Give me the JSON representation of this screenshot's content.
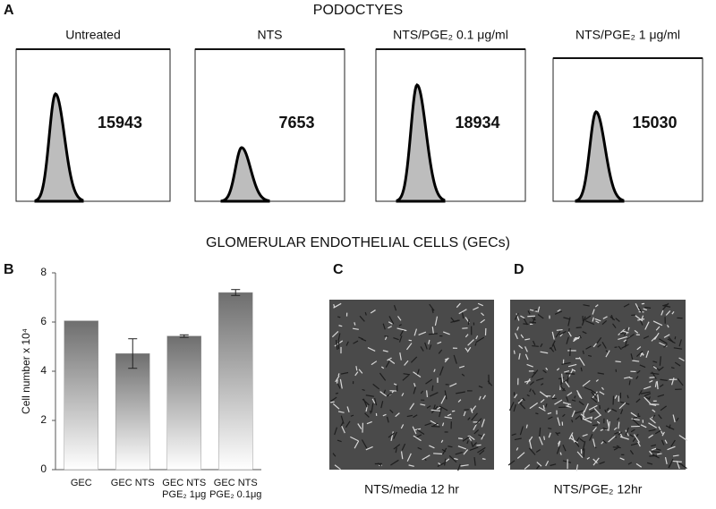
{
  "panel_a": {
    "label": "A",
    "title": "PODOCTYES",
    "histograms": [
      {
        "title": "Untreated",
        "value": "15943"
      },
      {
        "title": "NTS",
        "value": "7653"
      },
      {
        "title": "NTS/PGE₂ 0.1 μg/ml",
        "value": "18934"
      },
      {
        "title": "NTS/PGE₂  1 μg/ml",
        "value": "15030"
      }
    ]
  },
  "section_title": "GLOMERULAR ENDOTHELIAL CELLS (GECs)",
  "chart_data": {
    "type": "bar",
    "label": "B",
    "y_label": "Cell number x 10⁴",
    "categories": [
      "GEC",
      "GEC NTS",
      "GEC NTS PGE₂ 1μg",
      "GEC NTS PGE₂ 0.1μg"
    ],
    "values": [
      6.05,
      4.72,
      5.43,
      7.2
    ],
    "errors": [
      null,
      0.6,
      0.05,
      0.12
    ],
    "ylim": [
      0,
      8
    ],
    "yticks": [
      0,
      2,
      4,
      6,
      8
    ]
  },
  "panel_c": {
    "label": "C",
    "caption": "NTS/media 12 hr"
  },
  "panel_d": {
    "label": "D",
    "caption": "NTS/PGE₂ 12hr"
  }
}
